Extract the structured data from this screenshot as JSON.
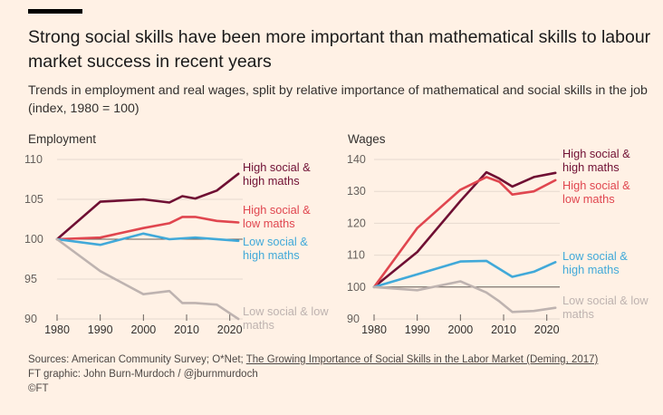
{
  "header": {
    "title": "Strong social skills have been more important than mathematical skills to labour market success in recent years",
    "subtitle": "Trends in employment and real wages, split by relative importance of mathematical and social skills in the job (index, 1980 = 100)"
  },
  "footer": {
    "sources_prefix": "Sources: American Community Survey; O*Net; ",
    "sources_link": "The Growing Importance of Social Skills in the Labor Market (Deming, 2017)",
    "credit": "FT graphic: John Burn-Murdoch / @jburnmurdoch",
    "copyright": "©FT"
  },
  "colors": {
    "background": "#fff1e5",
    "high_social_high_maths": "#6f0f33",
    "high_social_low_maths": "#e0464f",
    "low_social_high_maths": "#41a9d9",
    "low_social_low_maths": "#beb3b0",
    "gridline": "#e6d9ce",
    "baseline": "#66605c"
  },
  "chart_data": [
    {
      "type": "line",
      "title": "Employment",
      "xlim": [
        1980,
        2023
      ],
      "ylim": [
        90,
        110
      ],
      "x_ticks": [
        1980,
        1990,
        2000,
        2010,
        2020
      ],
      "y_ticks": [
        90,
        95,
        100,
        105,
        110
      ],
      "grid": true,
      "series": [
        {
          "name": "High social & high maths",
          "color_key": "high_social_high_maths",
          "x": [
            1980,
            1990,
            2000,
            2006,
            2009,
            2012,
            2017,
            2022
          ],
          "y": [
            100,
            104.7,
            105,
            104.6,
            105.4,
            105.1,
            106.1,
            108.2
          ]
        },
        {
          "name": "High social & low maths",
          "color_key": "high_social_low_maths",
          "x": [
            1980,
            1990,
            2000,
            2006,
            2009,
            2012,
            2017,
            2022
          ],
          "y": [
            100,
            100.2,
            101.4,
            102,
            102.8,
            102.8,
            102.3,
            102.1
          ]
        },
        {
          "name": "Low social & high maths",
          "color_key": "low_social_high_maths",
          "x": [
            1980,
            1990,
            2000,
            2006,
            2012,
            2022
          ],
          "y": [
            100,
            99.3,
            100.7,
            100,
            100.2,
            99.8
          ]
        },
        {
          "name": "Low social & low maths",
          "color_key": "low_social_low_maths",
          "x": [
            1980,
            1990,
            2000,
            2006,
            2009,
            2012,
            2017,
            2022
          ],
          "y": [
            100,
            96,
            93.1,
            93.5,
            92,
            92,
            91.8,
            90
          ]
        }
      ]
    },
    {
      "type": "line",
      "title": "Wages",
      "xlim": [
        1980,
        2023
      ],
      "ylim": [
        90,
        140
      ],
      "x_ticks": [
        1980,
        1990,
        2000,
        2010,
        2020
      ],
      "y_ticks": [
        90,
        100,
        110,
        120,
        130,
        140
      ],
      "grid": true,
      "series": [
        {
          "name": "High social & high maths",
          "color_key": "high_social_high_maths",
          "x": [
            1980,
            1990,
            2000,
            2006,
            2009,
            2012,
            2017,
            2022
          ],
          "y": [
            100,
            111,
            127,
            136,
            134,
            131.5,
            134.5,
            135.8
          ]
        },
        {
          "name": "High social & low maths",
          "color_key": "high_social_low_maths",
          "x": [
            1980,
            1990,
            2000,
            2006,
            2009,
            2012,
            2017,
            2022
          ],
          "y": [
            100,
            118.5,
            130.5,
            134.5,
            133,
            129,
            130,
            133.5
          ]
        },
        {
          "name": "Low social & high maths",
          "color_key": "low_social_high_maths",
          "x": [
            1980,
            1990,
            2000,
            2006,
            2012,
            2017,
            2022
          ],
          "y": [
            100,
            104,
            108,
            108.2,
            103.2,
            104.8,
            107.8
          ]
        },
        {
          "name": "Low social & low maths",
          "color_key": "low_social_low_maths",
          "x": [
            1980,
            1990,
            2000,
            2006,
            2009,
            2012,
            2017,
            2022
          ],
          "y": [
            100,
            99,
            101.8,
            98.3,
            95.5,
            92.2,
            92.5,
            93.5
          ]
        }
      ]
    }
  ]
}
